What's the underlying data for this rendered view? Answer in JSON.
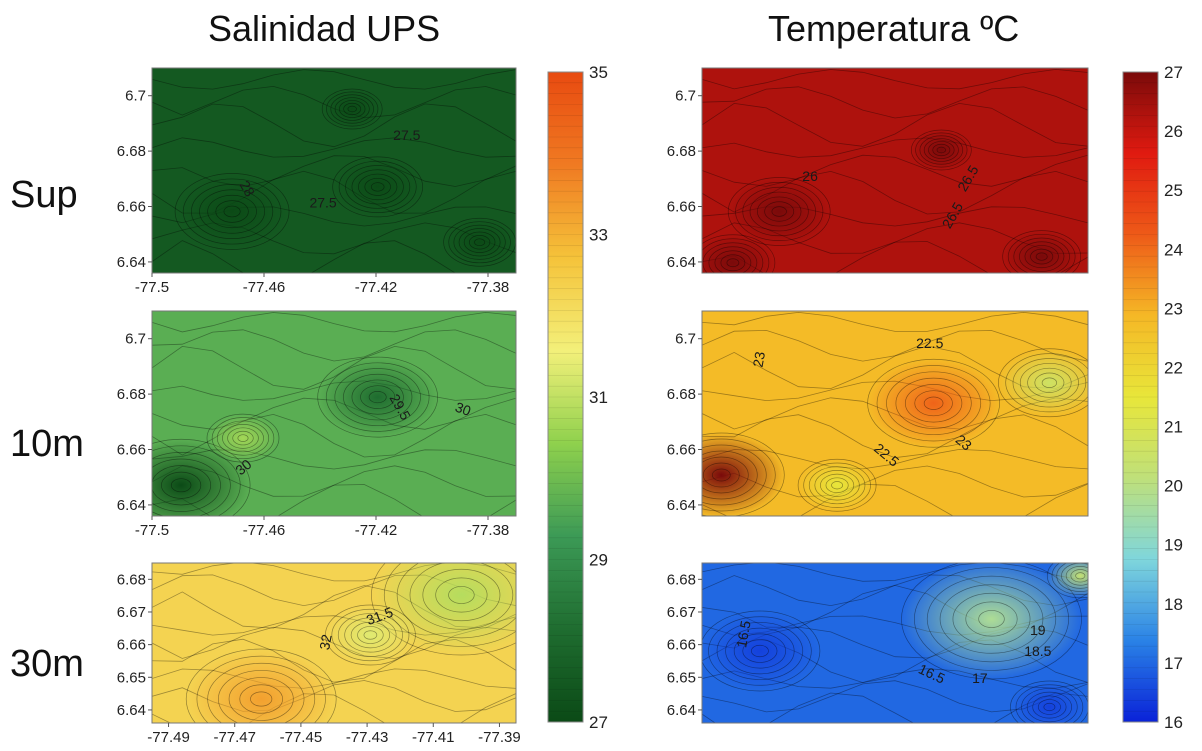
{
  "titles": {
    "salinity": "Salinidad UPS",
    "temperature": "Temperatura ºC"
  },
  "row_labels": [
    "Sup",
    "10m",
    "30m"
  ],
  "chart_data": [
    {
      "type": "heatmap",
      "variable": "salinity",
      "colormap": [
        "#0b4a16",
        "#1f6d30",
        "#3c9a56",
        "#8fd14d",
        "#f3f07a",
        "#f5c33a",
        "#f07a22",
        "#e84a10"
      ],
      "colorbar": {
        "range": [
          27,
          35
        ],
        "ticks": [
          27,
          29,
          31,
          33,
          35
        ]
      },
      "panels": [
        {
          "row": "Sup",
          "xlim": [
            -77.5,
            -77.37
          ],
          "ylim": [
            6.636,
            6.71
          ],
          "xticks": [
            "-77.5",
            "-77.46",
            "-77.42",
            "-77.38"
          ],
          "yticks": [
            "6.64",
            "6.66",
            "6.68",
            "6.7"
          ],
          "contour_labels": [
            "27.5",
            "28",
            "27.5"
          ],
          "fill_level": 27.5
        },
        {
          "row": "10m",
          "xlim": [
            -77.5,
            -77.37
          ],
          "ylim": [
            6.636,
            6.71
          ],
          "xticks": [
            "-77.5",
            "-77.46",
            "-77.42",
            "-77.38"
          ],
          "yticks": [
            "6.64",
            "6.66",
            "6.68",
            "6.7"
          ],
          "contour_labels": [
            "29.5",
            "30",
            "30"
          ],
          "fill_level": 29.7
        },
        {
          "row": "30m",
          "xlim": [
            -77.495,
            -77.385
          ],
          "ylim": [
            6.636,
            6.685
          ],
          "xticks": [
            "-77.49",
            "-77.47",
            "-77.45",
            "-77.43",
            "-77.41",
            "-77.39"
          ],
          "yticks": [
            "6.64",
            "6.65",
            "6.66",
            "6.67",
            "6.68"
          ],
          "contour_labels": [
            "32",
            "31.5"
          ],
          "fill_level": 32.3
        }
      ]
    },
    {
      "type": "heatmap",
      "variable": "temperature",
      "colormap": [
        "#0a22d8",
        "#2a82e6",
        "#7fd6dc",
        "#bfe07a",
        "#e8e63a",
        "#f5b826",
        "#ee5a18",
        "#e01a10",
        "#7a0a0a"
      ],
      "colorbar": {
        "range": [
          16,
          27
        ],
        "ticks": [
          16,
          17,
          18,
          19,
          20,
          21,
          22,
          23,
          24,
          25,
          26,
          27
        ]
      },
      "panels": [
        {
          "row": "Sup",
          "xlim": [
            -77.5,
            -77.37
          ],
          "ylim": [
            6.636,
            6.71
          ],
          "yticks": [
            "6.64",
            "6.66",
            "6.68",
            "6.7"
          ],
          "contour_labels": [
            "26",
            "26.5",
            "26.5"
          ],
          "fill_level": 26.3
        },
        {
          "row": "10m",
          "xlim": [
            -77.5,
            -77.37
          ],
          "ylim": [
            6.636,
            6.71
          ],
          "yticks": [
            "6.64",
            "6.66",
            "6.68",
            "6.7"
          ],
          "contour_labels": [
            "22.5",
            "23",
            "23",
            "22.5"
          ],
          "fill_level": 22.8
        },
        {
          "row": "30m",
          "xlim": [
            -77.495,
            -77.385
          ],
          "ylim": [
            6.636,
            6.685
          ],
          "yticks": [
            "6.64",
            "6.65",
            "6.66",
            "6.67",
            "6.68"
          ],
          "contour_labels": [
            "16.5",
            "19",
            "18.5",
            "16.5",
            "17"
          ],
          "fill_level": 17.0
        }
      ]
    }
  ]
}
